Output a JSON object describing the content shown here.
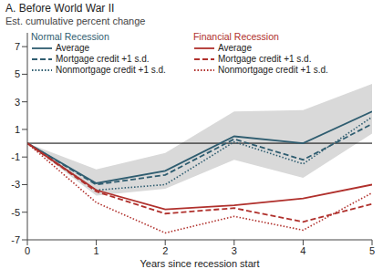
{
  "chart_data": {
    "type": "line",
    "title": "A. Before World War II",
    "y_label": "Est. cumulative percent change",
    "x_label": "Years since recession start",
    "x": [
      0,
      1,
      2,
      3,
      4,
      5
    ],
    "xlim": [
      0,
      5
    ],
    "xticks": [
      0,
      1,
      2,
      3,
      4,
      5
    ],
    "ylim": [
      -7,
      8
    ],
    "yticks": [
      -7,
      -5,
      -3,
      -1,
      1,
      3,
      5,
      7
    ],
    "grid": false,
    "legend": "upper left",
    "hline": 0,
    "series": [
      {
        "name": "Average",
        "group": "Normal Recession",
        "color": "#2f5d70",
        "line_style": "solid",
        "values": [
          0,
          -2.9,
          -2.0,
          0.5,
          0.0,
          2.3
        ],
        "band_lower": [
          0,
          -3.8,
          -3.3,
          -1.2,
          -2.5,
          0.7
        ],
        "band_upper": [
          0,
          -1.9,
          -0.7,
          2.3,
          2.4,
          4.3
        ],
        "band_color": "#d9d9d9"
      },
      {
        "name": "Mortgage credit +1 s.d.",
        "group": "Normal Recession",
        "color": "#2f5d70",
        "line_style": "dashed",
        "values": [
          0,
          -3.0,
          -2.3,
          0.3,
          -1.2,
          1.4
        ]
      },
      {
        "name": "Nonmortgage credit +1 s.d.",
        "group": "Normal Recession",
        "color": "#2f5d70",
        "line_style": "dotted",
        "values": [
          0,
          -3.4,
          -3.0,
          0.1,
          -1.5,
          1.9
        ]
      },
      {
        "name": "Average",
        "group": "Financial Recession",
        "color": "#b0302c",
        "line_style": "solid",
        "values": [
          0,
          -3.4,
          -4.8,
          -4.5,
          -4.0,
          -3.0
        ]
      },
      {
        "name": "Mortgage credit +1 s.d.",
        "group": "Financial Recession",
        "color": "#b0302c",
        "line_style": "dashed",
        "values": [
          0,
          -3.5,
          -5.1,
          -4.7,
          -5.7,
          -4.4
        ]
      },
      {
        "name": "Nonmortgage credit +1 s.d.",
        "group": "Financial Recession",
        "color": "#b0302c",
        "line_style": "dotted",
        "values": [
          0,
          -4.3,
          -6.5,
          -5.3,
          -6.3,
          -3.6
        ]
      }
    ]
  }
}
